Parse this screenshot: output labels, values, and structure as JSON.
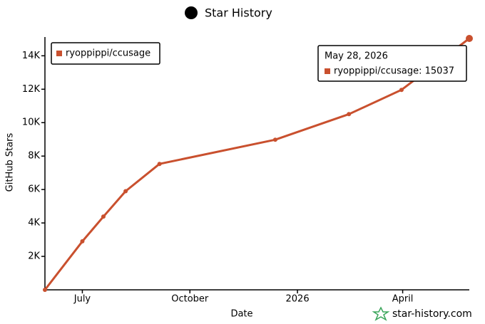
{
  "chart_data": {
    "type": "line",
    "title": "Star History",
    "x_label": "Date",
    "y_label": "GitHub Stars",
    "x": [
      "2025-05-30",
      "2025-07-01",
      "2025-07-19",
      "2025-08-07",
      "2025-09-05",
      "2025-12-13",
      "2026-02-14",
      "2026-03-31",
      "2026-05-28"
    ],
    "series": [
      {
        "name": "ryoppippi/ccusage",
        "color": "#c9502e",
        "values": [
          0,
          2900,
          4380,
          5900,
          7530,
          8980,
          10510,
          11960,
          15037
        ]
      }
    ],
    "xlim": [
      "2025-05-30",
      "2026-05-28"
    ],
    "xticks": [
      {
        "value": "2025-07-01",
        "label": "July"
      },
      {
        "value": "2025-10-01",
        "label": "October"
      },
      {
        "value": "2026-01-01",
        "label": "2026"
      },
      {
        "value": "2026-04-01",
        "label": "April"
      }
    ],
    "ylim": [
      0,
      15037
    ],
    "yticks": [
      {
        "value": 2000,
        "label": "2K"
      },
      {
        "value": 4000,
        "label": "4K"
      },
      {
        "value": 6000,
        "label": "6K"
      },
      {
        "value": 8000,
        "label": "8K"
      },
      {
        "value": 10000,
        "label": "10K"
      },
      {
        "value": 12000,
        "label": "12K"
      },
      {
        "value": 14000,
        "label": "14K"
      }
    ],
    "legend": "top-left",
    "tooltip": {
      "title": "May 28, 2026",
      "label": "ryoppippi/ccusage: 15037"
    },
    "watermark": "star-history.com"
  }
}
